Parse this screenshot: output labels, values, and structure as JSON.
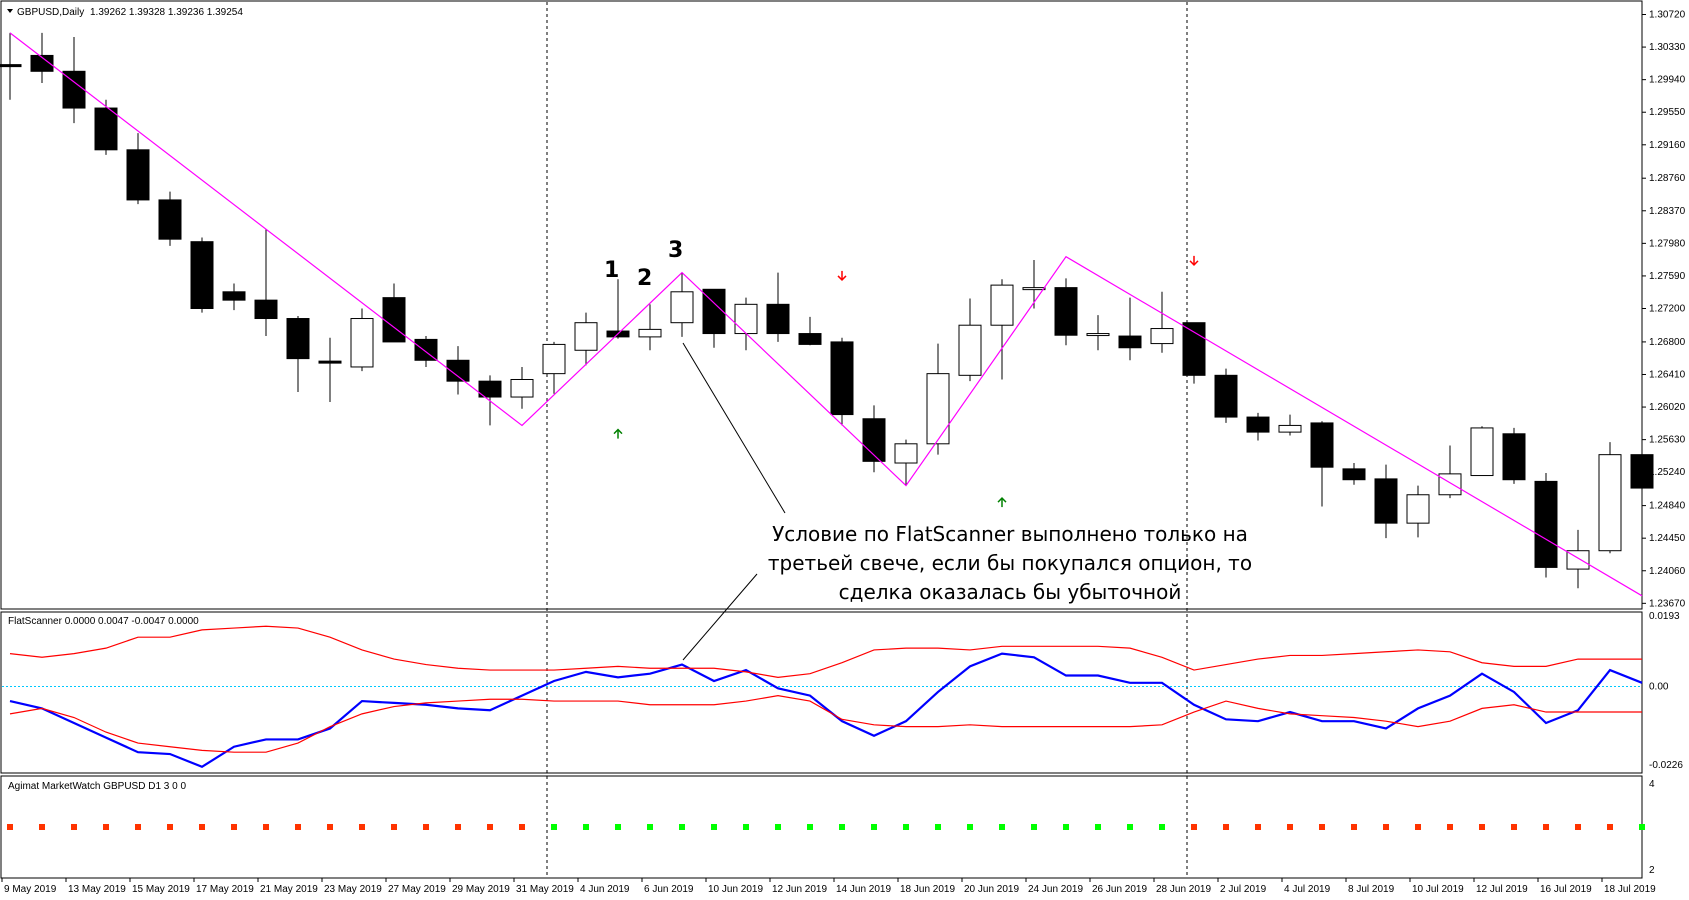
{
  "header": {
    "title": "GBPUSD,Daily",
    "ohlc": "1.39262 1.39328 1.39236 1.39254"
  },
  "indicators": {
    "flatscanner_label": "FlatScanner 0.0000 0.0047 -0.0047 0.0000",
    "marketwatch_label": "Agimat MarketWatch GBPUSD D1 3 0 0"
  },
  "annotation": {
    "numbers": [
      "1",
      "2",
      "3"
    ],
    "lines": [
      "Условие по FlatScanner выполнено только на",
      "третьей свече, если бы покупался опцион, то",
      "сделка оказалась бы убыточной"
    ]
  },
  "colors": {
    "bull": "#ffffff",
    "bear": "#000000",
    "zigzag": "#ff00ff",
    "osc": "#0000ff",
    "band": "#ff0000",
    "zero": "#00c8ff",
    "up_arrow": "#008000",
    "down_arrow": "#ff0000",
    "dot_green": "#00ff00",
    "dot_red": "#ff3300"
  },
  "chart_data": [
    {
      "type": "candlestick",
      "title": "GBPUSD,Daily",
      "y_ticks": [
        "1.30720",
        "1.30330",
        "1.29940",
        "1.29550",
        "1.29160",
        "1.28760",
        "1.28370",
        "1.27980",
        "1.27590",
        "1.27200",
        "1.26800",
        "1.26410",
        "1.26020",
        "1.25630",
        "1.25240",
        "1.24840",
        "1.24450",
        "1.24060",
        "1.23670"
      ],
      "ylim": [
        1.2365,
        1.3075
      ],
      "x_ticks": [
        "9 May 2019",
        "13 May 2019",
        "15 May 2019",
        "17 May 2019",
        "21 May 2019",
        "23 May 2019",
        "27 May 2019",
        "29 May 2019",
        "31 May 2019",
        "4 Jun 2019",
        "6 Jun 2019",
        "10 Jun 2019",
        "12 Jun 2019",
        "14 Jun 2019",
        "18 Jun 2019",
        "20 Jun 2019",
        "24 Jun 2019",
        "26 Jun 2019",
        "28 Jun 2019",
        "2 Jul 2019",
        "4 Jul 2019",
        "8 Jul 2019",
        "10 Jul 2019",
        "12 Jul 2019",
        "16 Jul 2019",
        "18 Jul 2019"
      ],
      "candles": [
        [
          1.3012,
          1.305,
          1.297,
          1.301
        ],
        [
          1.3023,
          1.305,
          1.299,
          1.3004
        ],
        [
          1.3004,
          1.3045,
          1.2942,
          1.296
        ],
        [
          1.296,
          1.297,
          1.2904,
          1.291
        ],
        [
          1.291,
          1.293,
          1.2845,
          1.285
        ],
        [
          1.285,
          1.286,
          1.2795,
          1.2803
        ],
        [
          1.28,
          1.2805,
          1.2715,
          1.272
        ],
        [
          1.274,
          1.275,
          1.2718,
          1.273
        ],
        [
          1.273,
          1.2815,
          1.2687,
          1.2708
        ],
        [
          1.2708,
          1.2711,
          1.262,
          1.266
        ],
        [
          1.2657,
          1.2685,
          1.2608,
          1.2655
        ],
        [
          1.265,
          1.272,
          1.2645,
          1.2708
        ],
        [
          1.2733,
          1.275,
          1.268,
          1.268
        ],
        [
          1.2683,
          1.2687,
          1.265,
          1.2658
        ],
        [
          1.2658,
          1.2675,
          1.2617,
          1.2633
        ],
        [
          1.2633,
          1.264,
          1.258,
          1.2614
        ],
        [
          1.2614,
          1.265,
          1.26,
          1.2635
        ],
        [
          1.2642,
          1.268,
          1.2618,
          1.2677
        ],
        [
          1.267,
          1.2715,
          1.2652,
          1.2703
        ],
        [
          1.2693,
          1.2755,
          1.2684,
          1.2686
        ],
        [
          1.2686,
          1.2725,
          1.267,
          1.2695
        ],
        [
          1.2703,
          1.2763,
          1.2686,
          1.274
        ],
        [
          1.2743,
          1.2743,
          1.2673,
          1.269
        ],
        [
          1.269,
          1.2733,
          1.267,
          1.2725
        ],
        [
          1.2725,
          1.2763,
          1.268,
          1.269
        ],
        [
          1.269,
          1.271,
          1.2676,
          1.2677
        ],
        [
          1.268,
          1.2685,
          1.258,
          1.2593
        ],
        [
          1.2588,
          1.2604,
          1.2524,
          1.2537
        ],
        [
          1.2535,
          1.2563,
          1.2508,
          1.2558
        ],
        [
          1.2558,
          1.2678,
          1.2545,
          1.2642
        ],
        [
          1.264,
          1.2732,
          1.2633,
          1.27
        ],
        [
          1.27,
          1.2755,
          1.2635,
          1.2748
        ],
        [
          1.2745,
          1.2778,
          1.272,
          1.2745
        ],
        [
          1.2745,
          1.2756,
          1.2676,
          1.2688
        ],
        [
          1.269,
          1.2712,
          1.267,
          1.269
        ],
        [
          1.2687,
          1.2733,
          1.2658,
          1.2673
        ],
        [
          1.2678,
          1.274,
          1.2667,
          1.2696
        ],
        [
          1.2703,
          1.2703,
          1.263,
          1.264
        ],
        [
          1.264,
          1.2648,
          1.2583,
          1.259
        ],
        [
          1.259,
          1.2595,
          1.2562,
          1.2572
        ],
        [
          1.2572,
          1.2593,
          1.2568,
          1.258
        ],
        [
          1.2583,
          1.2585,
          1.2483,
          1.253
        ],
        [
          1.2528,
          1.2535,
          1.2509,
          1.2515
        ],
        [
          1.2516,
          1.2533,
          1.2445,
          1.2463
        ],
        [
          1.2463,
          1.2508,
          1.2446,
          1.2497
        ],
        [
          1.2497,
          1.2556,
          1.2493,
          1.2522
        ],
        [
          1.252,
          1.2579,
          1.252,
          1.2577
        ],
        [
          1.257,
          1.2577,
          1.251,
          1.2515
        ],
        [
          1.2513,
          1.2523,
          1.2398,
          1.241
        ],
        [
          1.2408,
          1.2455,
          1.2385,
          1.243
        ],
        [
          1.243,
          1.256,
          1.2427,
          1.2545
        ],
        [
          1.2545,
          1.2555,
          1.2482,
          1.2505
        ]
      ],
      "zigzag": [
        [
          0,
          1.305
        ],
        [
          16,
          1.258
        ],
        [
          21,
          1.2763
        ],
        [
          28,
          1.2508
        ],
        [
          33,
          1.2782
        ],
        [
          51,
          1.2376
        ]
      ],
      "up_arrows": [
        [
          19,
          1.2575
        ],
        [
          31,
          1.2493
        ]
      ],
      "down_arrows": [
        [
          26,
          1.2765
        ],
        [
          37,
          1.2783
        ]
      ],
      "vlines": [
        17,
        37
      ]
    },
    {
      "type": "line",
      "title": "FlatScanner 0.0000 0.0047 -0.0047 0.0000",
      "y_ticks": [
        "0.0193",
        "0.00",
        "-0.0226"
      ],
      "ylim": [
        -0.0226,
        0.0193
      ],
      "series": [
        {
          "name": "",
          "color": "#0000ff",
          "values": [
            -0.004,
            -0.006,
            -0.01,
            -0.014,
            -0.018,
            -0.0185,
            -0.022,
            -0.0165,
            -0.0145,
            -0.0145,
            -0.0115,
            -0.004,
            -0.0045,
            -0.005,
            -0.006,
            -0.0065,
            -0.0025,
            0.0015,
            0.004,
            0.0025,
            0.0035,
            0.006,
            0.0015,
            0.0045,
            -0.0005,
            -0.0025,
            -0.0095,
            -0.0135,
            -0.0095,
            -0.0015,
            0.0055,
            0.009,
            0.008,
            0.003,
            0.003,
            0.001,
            0.001,
            -0.005,
            -0.009,
            -0.0095,
            -0.007,
            -0.0095,
            -0.0095,
            -0.0115,
            -0.006,
            -0.0025,
            0.0035,
            -0.0015,
            -0.01,
            -0.0065,
            0.0045,
            0.001
          ]
        },
        {
          "name": "",
          "color": "#ff0000",
          "values": [
            0.009,
            0.008,
            0.009,
            0.0105,
            0.0135,
            0.0135,
            0.0155,
            0.016,
            0.0165,
            0.016,
            0.0135,
            0.01,
            0.0075,
            0.006,
            0.005,
            0.0045,
            0.0045,
            0.0045,
            0.005,
            0.0055,
            0.005,
            0.005,
            0.005,
            0.004,
            0.0025,
            0.0035,
            0.0065,
            0.01,
            0.0105,
            0.0105,
            0.01,
            0.011,
            0.011,
            0.011,
            0.011,
            0.0105,
            0.008,
            0.0045,
            0.006,
            0.0075,
            0.0085,
            0.0085,
            0.009,
            0.0095,
            0.01,
            0.0095,
            0.0065,
            0.0055,
            0.0055,
            0.0075,
            0.0075,
            0.0075
          ]
        },
        {
          "name": "",
          "color": "#ff0000",
          "values": [
            -0.0075,
            -0.006,
            -0.0085,
            -0.0125,
            -0.0155,
            -0.0165,
            -0.0175,
            -0.018,
            -0.018,
            -0.0155,
            -0.011,
            -0.0075,
            -0.0055,
            -0.0045,
            -0.004,
            -0.0035,
            -0.0035,
            -0.004,
            -0.004,
            -0.004,
            -0.005,
            -0.005,
            -0.005,
            -0.004,
            -0.0025,
            -0.004,
            -0.009,
            -0.0105,
            -0.011,
            -0.011,
            -0.0105,
            -0.011,
            -0.011,
            -0.011,
            -0.011,
            -0.011,
            -0.0105,
            -0.007,
            -0.004,
            -0.006,
            -0.0075,
            -0.008,
            -0.0085,
            -0.0095,
            -0.011,
            -0.0095,
            -0.006,
            -0.005,
            -0.007,
            -0.007,
            -0.007,
            -0.007
          ]
        }
      ]
    },
    {
      "type": "scatter",
      "title": "Agimat MarketWatch GBPUSD D1 3 0 0",
      "y_ticks": [
        "4",
        "2"
      ],
      "ylim": [
        2,
        4
      ],
      "dots": [
        "red",
        "red",
        "red",
        "red",
        "red",
        "red",
        "red",
        "red",
        "red",
        "red",
        "red",
        "red",
        "red",
        "red",
        "red",
        "red",
        "red",
        "green",
        "green",
        "green",
        "green",
        "green",
        "green",
        "green",
        "green",
        "green",
        "green",
        "green",
        "green",
        "green",
        "green",
        "green",
        "green",
        "green",
        "green",
        "green",
        "green",
        "red",
        "red",
        "red",
        "red",
        "red",
        "red",
        "red",
        "red",
        "red",
        "red",
        "red",
        "red",
        "red",
        "red",
        "green"
      ]
    }
  ]
}
